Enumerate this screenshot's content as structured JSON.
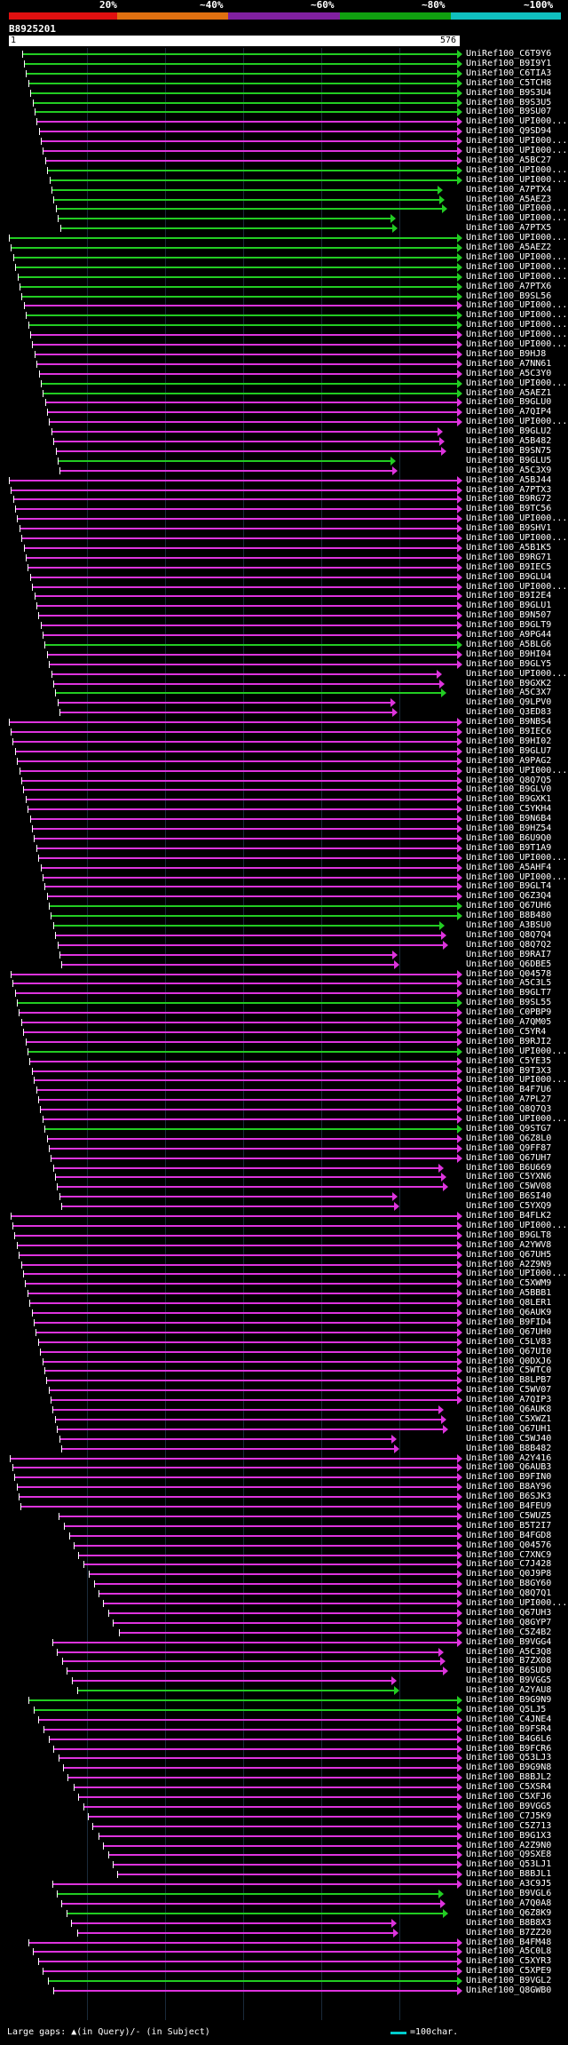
{
  "legend": {
    "labels": [
      "20%",
      "~40%",
      "~60%",
      "~80%",
      "~100%"
    ],
    "colors": [
      "#e01010",
      "#e07010",
      "#8020a0",
      "#10a010",
      "#10c0c0"
    ]
  },
  "query": {
    "id": "B8925201",
    "start": "1",
    "end": "576"
  },
  "hits": [
    {
      "name": "UniRef100_C6T9Y6",
      "color": "green"
    },
    {
      "name": "UniRef100_B9I9Y1",
      "color": "green"
    },
    {
      "name": "UniRef100_C6TIA3",
      "color": "green"
    },
    {
      "name": "UniRef100_C5TCH8",
      "color": "green"
    },
    {
      "name": "UniRef100_B9S3U4",
      "color": "green"
    },
    {
      "name": "UniRef100_B9S3U5",
      "color": "green"
    },
    {
      "name": "UniRef100_B9SU07",
      "color": "green"
    },
    {
      "name": "UniRef100_UPI000...",
      "color": "magenta"
    },
    {
      "name": "UniRef100_Q9SD94",
      "color": "magenta"
    },
    {
      "name": "UniRef100_UPI000...",
      "color": "magenta"
    },
    {
      "name": "UniRef100_UPI000...",
      "color": "magenta"
    },
    {
      "name": "UniRef100_A5BC27",
      "color": "magenta"
    },
    {
      "name": "UniRef100_UPI000...",
      "color": "green"
    },
    {
      "name": "UniRef100_UPI000...",
      "color": "green"
    },
    {
      "name": "UniRef100_A7PTX4",
      "color": "green"
    },
    {
      "name": "UniRef100_A5AEZ3",
      "color": "green"
    },
    {
      "name": "UniRef100_UPI000...",
      "color": "green"
    },
    {
      "name": "UniRef100_UPI000...",
      "color": "green"
    },
    {
      "name": "UniRef100_A7PTX5",
      "color": "green"
    },
    {
      "name": "UniRef100_UPI000...",
      "color": "green"
    },
    {
      "name": "UniRef100_A5AEZ2",
      "color": "green"
    },
    {
      "name": "UniRef100_UPI000...",
      "color": "green"
    },
    {
      "name": "UniRef100_UPI000...",
      "color": "green"
    },
    {
      "name": "UniRef100_UPI000...",
      "color": "green"
    },
    {
      "name": "UniRef100_A7PTX6",
      "color": "green"
    },
    {
      "name": "UniRef100_B9SL56",
      "color": "green"
    },
    {
      "name": "UniRef100_UPI000...",
      "color": "magenta"
    },
    {
      "name": "UniRef100_UPI000...",
      "color": "green"
    },
    {
      "name": "UniRef100_UPI000...",
      "color": "green"
    },
    {
      "name": "UniRef100_UPI000...",
      "color": "magenta"
    },
    {
      "name": "UniRef100_UPI000...",
      "color": "magenta"
    },
    {
      "name": "UniRef100_B9HJ8",
      "color": "magenta"
    },
    {
      "name": "UniRef100_A7NN61",
      "color": "magenta"
    },
    {
      "name": "UniRef100_A5C3Y0",
      "color": "magenta"
    },
    {
      "name": "UniRef100_UPI000...",
      "color": "green"
    },
    {
      "name": "UniRef100_A5AEZ1",
      "color": "green"
    },
    {
      "name": "UniRef100_B9GLU0",
      "color": "magenta"
    },
    {
      "name": "UniRef100_A7QIP4",
      "color": "magenta"
    },
    {
      "name": "UniRef100_UPI000...",
      "color": "magenta"
    },
    {
      "name": "UniRef100_B9GLU2",
      "color": "magenta"
    },
    {
      "name": "UniRef100_A5B482",
      "color": "magenta"
    },
    {
      "name": "UniRef100_B9SN75",
      "color": "magenta"
    },
    {
      "name": "UniRef100_B9GLU5",
      "color": "green"
    },
    {
      "name": "UniRef100_A5C3X9",
      "color": "magenta"
    },
    {
      "name": "UniRef100_A5BJ44",
      "color": "magenta"
    },
    {
      "name": "UniRef100_A7PTX3",
      "color": "magenta"
    },
    {
      "name": "UniRef100_B9RG72",
      "color": "magenta"
    },
    {
      "name": "UniRef100_B9TC56",
      "color": "magenta"
    },
    {
      "name": "UniRef100_UPI000...",
      "color": "magenta"
    },
    {
      "name": "UniRef100_B9SHV1",
      "color": "magenta"
    },
    {
      "name": "UniRef100_UPI000...",
      "color": "magenta"
    },
    {
      "name": "UniRef100_A5B1K5",
      "color": "magenta"
    },
    {
      "name": "UniRef100_B9RG71",
      "color": "magenta"
    },
    {
      "name": "UniRef100_B9IEC5",
      "color": "magenta"
    },
    {
      "name": "UniRef100_B9GLU4",
      "color": "magenta"
    },
    {
      "name": "UniRef100_UPI000...",
      "color": "magenta"
    },
    {
      "name": "UniRef100_B9I2E4",
      "color": "magenta"
    },
    {
      "name": "UniRef100_B9GLU1",
      "color": "magenta"
    },
    {
      "name": "UniRef100_B9N507",
      "color": "magenta"
    },
    {
      "name": "UniRef100_B9GLT9",
      "color": "magenta"
    },
    {
      "name": "UniRef100_A9PG44",
      "color": "magenta"
    },
    {
      "name": "UniRef100_A5BLG6",
      "color": "green"
    },
    {
      "name": "UniRef100_B9HI04",
      "color": "magenta"
    },
    {
      "name": "UniRef100_B9GLY5",
      "color": "magenta"
    },
    {
      "name": "UniRef100_UPI000...",
      "color": "magenta"
    },
    {
      "name": "UniRef100_B9GXK2",
      "color": "magenta"
    },
    {
      "name": "UniRef100_A5C3X7",
      "color": "green"
    },
    {
      "name": "UniRef100_Q9LPV0",
      "color": "magenta"
    },
    {
      "name": "UniRef100_Q3ED83",
      "color": "magenta"
    },
    {
      "name": "UniRef100_B9NBS4",
      "color": "magenta"
    },
    {
      "name": "UniRef100_B9IEC6",
      "color": "magenta"
    },
    {
      "name": "UniRef100_B9HI02",
      "color": "magenta"
    },
    {
      "name": "UniRef100_B9GLU7",
      "color": "magenta"
    },
    {
      "name": "UniRef100_A9PAG2",
      "color": "magenta"
    },
    {
      "name": "UniRef100_UPI000...",
      "color": "magenta"
    },
    {
      "name": "UniRef100_Q8Q7Q5",
      "color": "magenta"
    },
    {
      "name": "UniRef100_B9GLV0",
      "color": "magenta"
    },
    {
      "name": "UniRef100_B9GXK1",
      "color": "magenta"
    },
    {
      "name": "UniRef100_C5YKH4",
      "color": "magenta"
    },
    {
      "name": "UniRef100_B9N6B4",
      "color": "magenta"
    },
    {
      "name": "UniRef100_B9HZ54",
      "color": "magenta"
    },
    {
      "name": "UniRef100_B6U9Q0",
      "color": "magenta"
    },
    {
      "name": "UniRef100_B9T1A9",
      "color": "magenta"
    },
    {
      "name": "UniRef100_UPI000...",
      "color": "magenta"
    },
    {
      "name": "UniRef100_A5AHF4",
      "color": "magenta"
    },
    {
      "name": "UniRef100_UPI000...",
      "color": "magenta"
    },
    {
      "name": "UniRef100_B9GLT4",
      "color": "magenta"
    },
    {
      "name": "UniRef100_Q6Z3Q4",
      "color": "magenta"
    },
    {
      "name": "UniRef100_Q67UH6",
      "color": "green"
    },
    {
      "name": "UniRef100_B8B480",
      "color": "green"
    },
    {
      "name": "UniRef100_A3BSU0",
      "color": "green"
    },
    {
      "name": "UniRef100_Q8Q7Q4",
      "color": "magenta"
    },
    {
      "name": "UniRef100_Q8Q7Q2",
      "color": "magenta"
    },
    {
      "name": "UniRef100_B9RAI7",
      "color": "magenta"
    },
    {
      "name": "UniRef100_Q6DBE5",
      "color": "magenta"
    },
    {
      "name": "UniRef100_Q04578",
      "color": "magenta"
    },
    {
      "name": "UniRef100_A5C3L5",
      "color": "magenta"
    },
    {
      "name": "UniRef100_B9GLT7",
      "color": "magenta"
    },
    {
      "name": "UniRef100_B9SL55",
      "color": "green"
    },
    {
      "name": "UniRef100_C0PBP9",
      "color": "magenta"
    },
    {
      "name": "UniRef100_A7QM05",
      "color": "magenta"
    },
    {
      "name": "UniRef100_C5YR4",
      "color": "magenta"
    },
    {
      "name": "UniRef100_B9RJI2",
      "color": "magenta"
    },
    {
      "name": "UniRef100_UPI000...",
      "color": "green"
    },
    {
      "name": "UniRef100_C5YE35",
      "color": "magenta"
    },
    {
      "name": "UniRef100_B9T3X3",
      "color": "magenta"
    },
    {
      "name": "UniRef100_UPI000...",
      "color": "magenta"
    },
    {
      "name": "UniRef100_B4F7U6",
      "color": "magenta"
    },
    {
      "name": "UniRef100_A7PL27",
      "color": "magenta"
    },
    {
      "name": "UniRef100_Q8Q7Q3",
      "color": "magenta"
    },
    {
      "name": "UniRef100_UPI000...",
      "color": "magenta"
    },
    {
      "name": "UniRef100_Q9STG7",
      "color": "green"
    },
    {
      "name": "UniRef100_Q6Z8L0",
      "color": "magenta"
    },
    {
      "name": "UniRef100_Q9FF87",
      "color": "magenta"
    },
    {
      "name": "UniRef100_Q67UH7",
      "color": "magenta"
    },
    {
      "name": "UniRef100_B6U669",
      "color": "magenta"
    },
    {
      "name": "UniRef100_C5YXN6",
      "color": "magenta"
    },
    {
      "name": "UniRef100_C5WV08",
      "color": "magenta"
    },
    {
      "name": "UniRef100_B6SI40",
      "color": "magenta"
    },
    {
      "name": "UniRef100_C5YXQ9",
      "color": "magenta"
    },
    {
      "name": "UniRef100_B4FLK2",
      "color": "magenta"
    },
    {
      "name": "UniRef100_UPI000...",
      "color": "magenta"
    },
    {
      "name": "UniRef100_B9GLT8",
      "color": "magenta"
    },
    {
      "name": "UniRef100_A2YWV8",
      "color": "magenta"
    },
    {
      "name": "UniRef100_Q67UH5",
      "color": "magenta"
    },
    {
      "name": "UniRef100_A2Z9N9",
      "color": "magenta"
    },
    {
      "name": "UniRef100_UPI000...",
      "color": "magenta"
    },
    {
      "name": "UniRef100_C5XWM9",
      "color": "magenta"
    },
    {
      "name": "UniRef100_A5BBB1",
      "color": "magenta"
    },
    {
      "name": "UniRef100_Q8LER1",
      "color": "magenta"
    },
    {
      "name": "UniRef100_Q6AUK9",
      "color": "magenta"
    },
    {
      "name": "UniRef100_B9FID4",
      "color": "magenta"
    },
    {
      "name": "UniRef100_Q67UH0",
      "color": "magenta"
    },
    {
      "name": "UniRef100_C5LV83",
      "color": "magenta"
    },
    {
      "name": "UniRef100_Q67UI0",
      "color": "magenta"
    },
    {
      "name": "UniRef100_Q0DXJ6",
      "color": "magenta"
    },
    {
      "name": "UniRef100_C5WTC0",
      "color": "magenta"
    },
    {
      "name": "UniRef100_B8LPB7",
      "color": "magenta"
    },
    {
      "name": "UniRef100_C5WV07",
      "color": "magenta"
    },
    {
      "name": "UniRef100_A7QIP3",
      "color": "magenta"
    },
    {
      "name": "UniRef100_Q6AUK8",
      "color": "magenta"
    },
    {
      "name": "UniRef100_C5XWZ1",
      "color": "magenta"
    },
    {
      "name": "UniRef100_Q67UH1",
      "color": "magenta"
    },
    {
      "name": "UniRef100_C5WJ40",
      "color": "magenta"
    },
    {
      "name": "UniRef100_B8B482",
      "color": "magenta"
    },
    {
      "name": "UniRef100_A2Y416",
      "color": "magenta"
    },
    {
      "name": "UniRef100_Q6AUB3",
      "color": "magenta"
    },
    {
      "name": "UniRef100_B9FIN0",
      "color": "magenta"
    },
    {
      "name": "UniRef100_B8AY96",
      "color": "magenta"
    },
    {
      "name": "UniRef100_B6SJK3",
      "color": "magenta"
    },
    {
      "name": "UniRef100_B4FEU9",
      "color": "magenta"
    },
    {
      "name": "UniRef100_C5WUZ5",
      "color": "magenta"
    },
    {
      "name": "UniRef100_B5T2I7",
      "color": "magenta"
    },
    {
      "name": "UniRef100_B4FGD8",
      "color": "magenta"
    },
    {
      "name": "UniRef100_Q04576",
      "color": "magenta"
    },
    {
      "name": "UniRef100_C7XNC9",
      "color": "magenta"
    },
    {
      "name": "UniRef100_C7J428",
      "color": "magenta"
    },
    {
      "name": "UniRef100_Q0J9P8",
      "color": "magenta"
    },
    {
      "name": "UniRef100_B8GY60",
      "color": "magenta"
    },
    {
      "name": "UniRef100_Q8Q7Q1",
      "color": "magenta"
    },
    {
      "name": "UniRef100_UPI000...",
      "color": "magenta"
    },
    {
      "name": "UniRef100_Q67UH3",
      "color": "magenta"
    },
    {
      "name": "UniRef100_Q8GYP7",
      "color": "magenta"
    },
    {
      "name": "UniRef100_C5Z4B2",
      "color": "magenta"
    },
    {
      "name": "UniRef100_B9VGG4",
      "color": "magenta"
    },
    {
      "name": "UniRef100_A5C3Q8",
      "color": "magenta"
    },
    {
      "name": "UniRef100_B7ZX08",
      "color": "magenta"
    },
    {
      "name": "UniRef100_B6SUD0",
      "color": "magenta"
    },
    {
      "name": "UniRef100_B9VGG5",
      "color": "magenta"
    },
    {
      "name": "UniRef100_A2YAU8",
      "color": "green"
    },
    {
      "name": "UniRef100_B9G9N9",
      "color": "green"
    },
    {
      "name": "UniRef100_Q5LJ5",
      "color": "green"
    },
    {
      "name": "UniRef100_C4JNE4",
      "color": "magenta"
    },
    {
      "name": "UniRef100_B9FSR4",
      "color": "magenta"
    },
    {
      "name": "UniRef100_B4G6L6",
      "color": "magenta"
    },
    {
      "name": "UniRef100_B9FCR6",
      "color": "magenta"
    },
    {
      "name": "UniRef100_Q53LJ3",
      "color": "magenta"
    },
    {
      "name": "UniRef100_B9G9N8",
      "color": "magenta"
    },
    {
      "name": "UniRef100_B8BJL2",
      "color": "magenta"
    },
    {
      "name": "UniRef100_C5XSR4",
      "color": "magenta"
    },
    {
      "name": "UniRef100_C5XFJ6",
      "color": "magenta"
    },
    {
      "name": "UniRef100_B9VGG5",
      "color": "magenta"
    },
    {
      "name": "UniRef100_C7J5K9",
      "color": "magenta"
    },
    {
      "name": "UniRef100_C5Z713",
      "color": "magenta"
    },
    {
      "name": "UniRef100_B9G1X3",
      "color": "magenta"
    },
    {
      "name": "UniRef100_A2Z9N0",
      "color": "magenta"
    },
    {
      "name": "UniRef100_Q9SXE8",
      "color": "magenta"
    },
    {
      "name": "UniRef100_Q53LJ1",
      "color": "magenta"
    },
    {
      "name": "UniRef100_B8BJL1",
      "color": "magenta"
    },
    {
      "name": "UniRef100_A3C9J5",
      "color": "magenta"
    },
    {
      "name": "UniRef100_B9VGL6",
      "color": "green"
    },
    {
      "name": "UniRef100_A7Q0A8",
      "color": "magenta"
    },
    {
      "name": "UniRef100_Q6Z8K9",
      "color": "green"
    },
    {
      "name": "UniRef100_B8B8X3",
      "color": "magenta"
    },
    {
      "name": "UniRef100_B7ZZ20",
      "color": "magenta"
    },
    {
      "name": "UniRef100_B4FM48",
      "color": "magenta"
    },
    {
      "name": "UniRef100_A5C0L8",
      "color": "magenta"
    },
    {
      "name": "UniRef100_C5XYR3",
      "color": "magenta"
    },
    {
      "name": "UniRef100_C5XPE9",
      "color": "magenta"
    },
    {
      "name": "UniRef100_B9VGL2",
      "color": "green"
    },
    {
      "name": "UniRef100_Q8GWB0",
      "color": "magenta"
    }
  ],
  "footer": {
    "gaps_text": "Large gaps: ▲(in Query)/- (in Subject)",
    "scale_text": "=100char."
  }
}
